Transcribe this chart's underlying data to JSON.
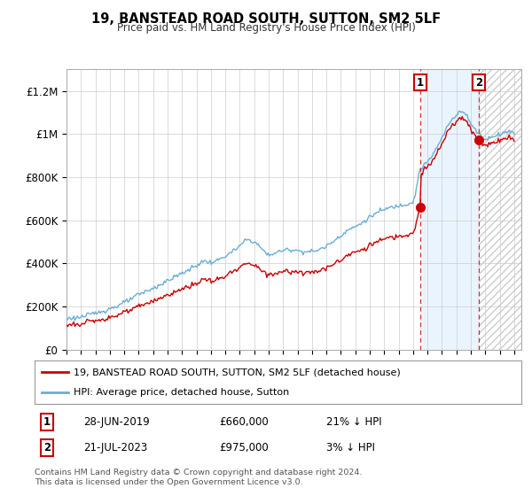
{
  "title": "19, BANSTEAD ROAD SOUTH, SUTTON, SM2 5LF",
  "subtitle": "Price paid vs. HM Land Registry's House Price Index (HPI)",
  "ylim": [
    0,
    1300000
  ],
  "xlim": [
    1995.0,
    2026.5
  ],
  "yticks": [
    0,
    200000,
    400000,
    600000,
    800000,
    1000000,
    1200000
  ],
  "ytick_labels": [
    "£0",
    "£200K",
    "£400K",
    "£600K",
    "£800K",
    "£1M",
    "£1.2M"
  ],
  "xtick_years": [
    1995,
    1996,
    1997,
    1998,
    1999,
    2000,
    2001,
    2002,
    2003,
    2004,
    2005,
    2006,
    2007,
    2008,
    2009,
    2010,
    2011,
    2012,
    2013,
    2014,
    2015,
    2016,
    2017,
    2018,
    2019,
    2020,
    2021,
    2022,
    2023,
    2024,
    2025,
    2026
  ],
  "sale1_x": 2019.5,
  "sale1_y": 660000,
  "sale2_x": 2023.55,
  "sale2_y": 975000,
  "legend_line1": "19, BANSTEAD ROAD SOUTH, SUTTON, SM2 5LF (detached house)",
  "legend_line2": "HPI: Average price, detached house, Sutton",
  "annotation1_date": "28-JUN-2019",
  "annotation1_price": "£660,000",
  "annotation1_hpi": "21% ↓ HPI",
  "annotation2_date": "21-JUL-2023",
  "annotation2_price": "£975,000",
  "annotation2_hpi": "3% ↓ HPI",
  "footer": "Contains HM Land Registry data © Crown copyright and database right 2024.\nThis data is licensed under the Open Government Licence v3.0.",
  "hpi_color": "#6aaed6",
  "sale_color": "#cc0000",
  "shade_color": "#ddeeff",
  "hatch_color": "#cccccc",
  "plot_bg": "#ffffff",
  "grid_color": "#cccccc"
}
